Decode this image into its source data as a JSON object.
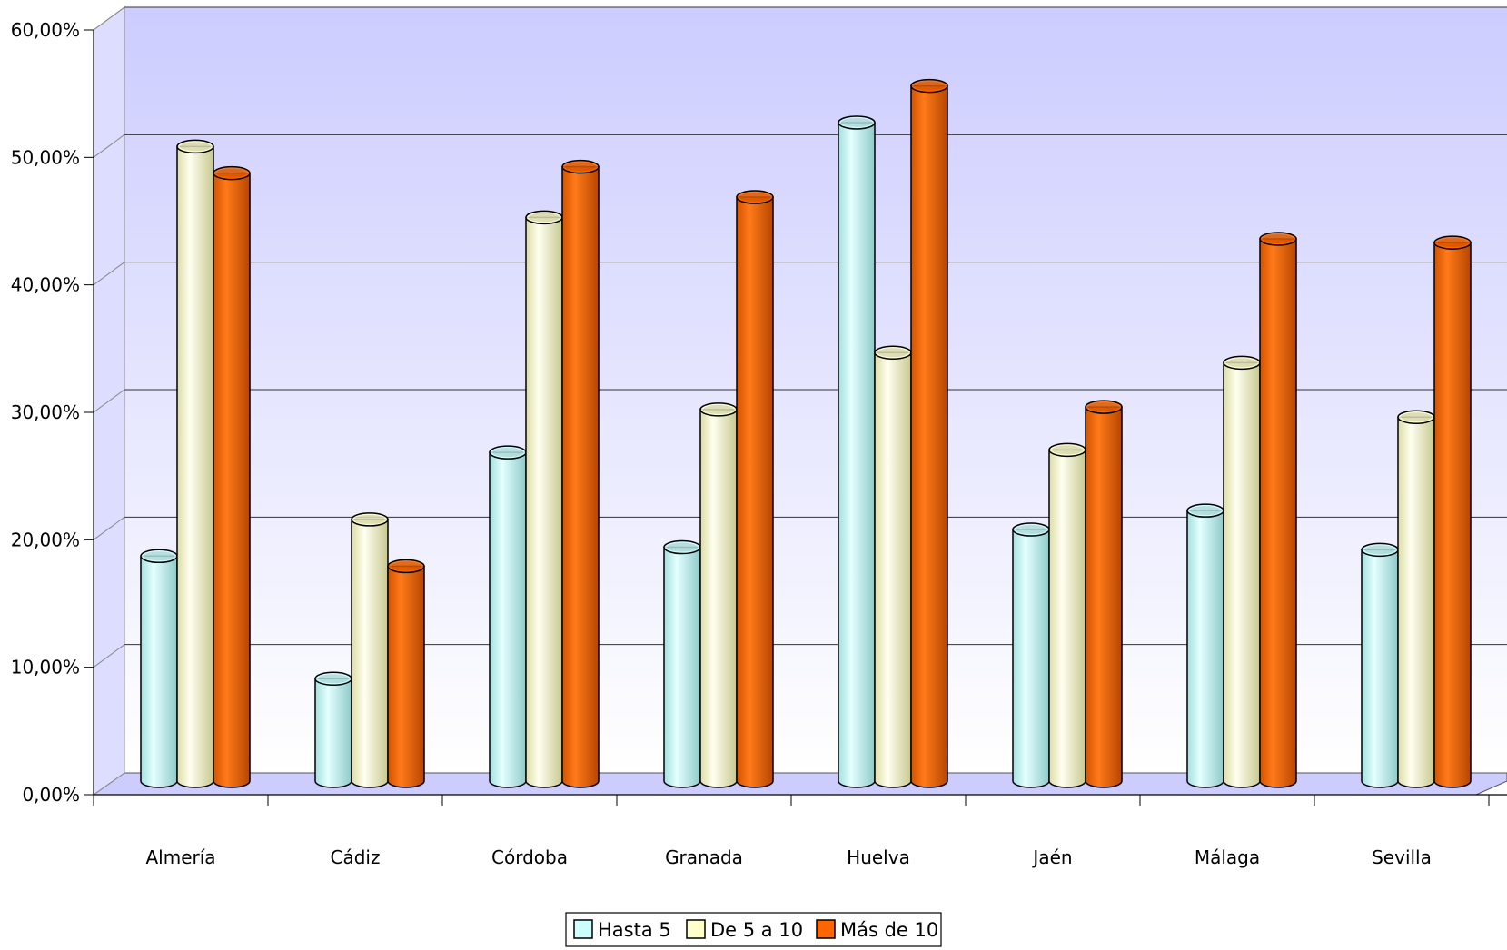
{
  "chart_data": {
    "type": "bar",
    "categories": [
      "Almería",
      "Cádiz",
      "Córdoba",
      "Granada",
      "Huelva",
      "Jaén",
      "Málaga",
      "Sevilla"
    ],
    "series": [
      {
        "name": "Hasta 5",
        "color": "#ccffff",
        "values": [
          17.8,
          8.1,
          26.0,
          18.5,
          52.1,
          19.9,
          21.4,
          18.3
        ]
      },
      {
        "name": "De 5 a 10",
        "color": "#ffffcc",
        "values": [
          50.2,
          20.7,
          44.6,
          29.4,
          33.9,
          26.2,
          33.1,
          28.8
        ]
      },
      {
        "name": "Más de 10",
        "color": "#ff6600",
        "values": [
          48.1,
          17.0,
          48.6,
          46.2,
          55.0,
          29.6,
          42.9,
          42.6
        ]
      }
    ],
    "ylim": [
      0,
      60
    ],
    "yticks": [
      "0,00%",
      "10,00%",
      "20,00%",
      "30,00%",
      "40,00%",
      "50,00%",
      "60,00%"
    ],
    "xlabel": "",
    "ylabel": "",
    "grid": true,
    "legend_position": "bottom-center",
    "style": "3d-cylinder"
  }
}
